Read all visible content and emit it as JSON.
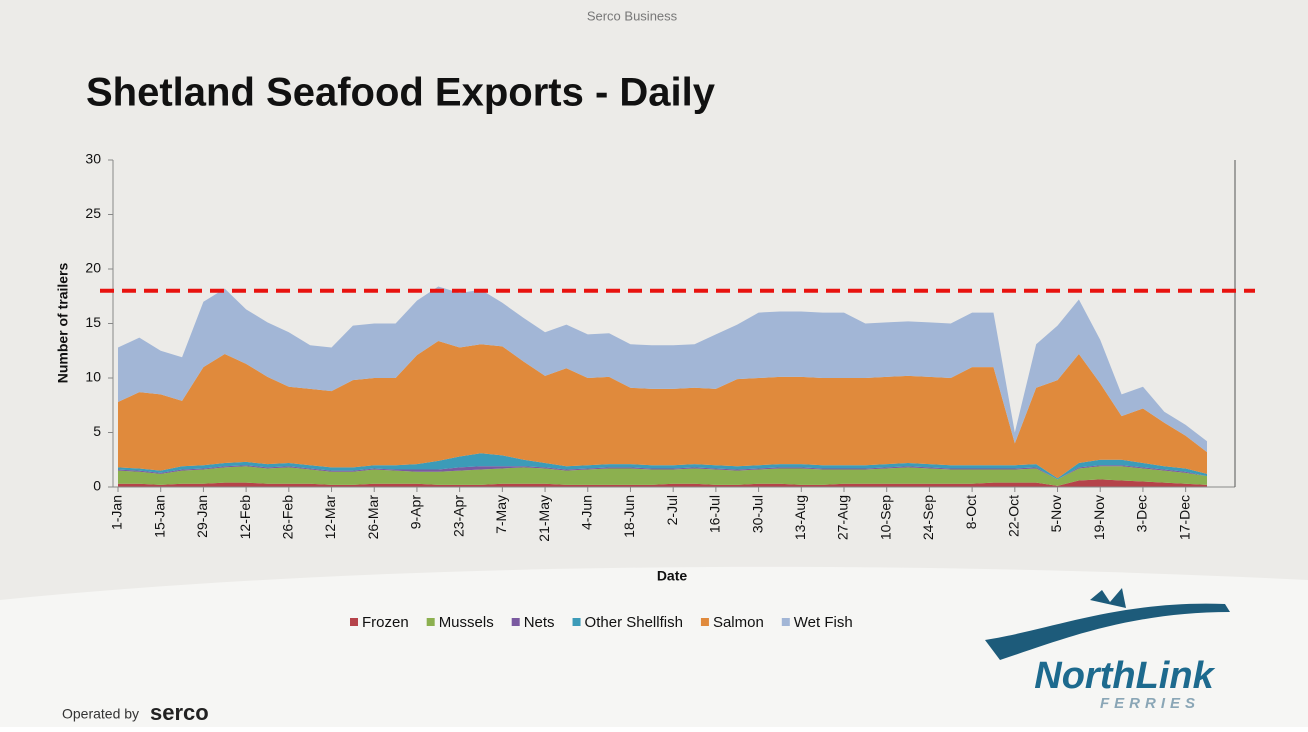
{
  "header": "Serco Business",
  "footer": {
    "operated": "Operated by",
    "brand": "serco"
  },
  "logo": {
    "name": "NorthLink",
    "sub": "FERRIES"
  },
  "chart_data": {
    "type": "stacked-area",
    "title": "Shetland Seafood Exports - Daily",
    "x_label": "Date",
    "y_label": "Number of trailers",
    "categories": [
      "1-Jan",
      null,
      "15-Jan",
      null,
      "29-Jan",
      null,
      "12-Feb",
      null,
      "26-Feb",
      null,
      "12-Mar",
      null,
      "26-Mar",
      null,
      "9-Apr",
      null,
      "23-Apr",
      null,
      "7-May",
      null,
      "21-May",
      null,
      "4-Jun",
      null,
      "18-Jun",
      null,
      "2-Jul",
      null,
      "16-Jul",
      null,
      "30-Jul",
      null,
      "13-Aug",
      null,
      "27-Aug",
      null,
      "10-Sep",
      null,
      "24-Sep",
      null,
      "8-Oct",
      null,
      "22-Oct",
      null,
      "5-Nov",
      null,
      "19-Nov",
      null,
      "3-Dec",
      null,
      "17-Dec",
      null
    ],
    "series": [
      {
        "name": "Frozen",
        "color": "#b5434a",
        "values": [
          0.3,
          0.3,
          0.2,
          0.3,
          0.3,
          0.4,
          0.4,
          0.3,
          0.3,
          0.3,
          0.2,
          0.2,
          0.3,
          0.3,
          0.3,
          0.2,
          0.2,
          0.2,
          0.3,
          0.3,
          0.3,
          0.2,
          0.2,
          0.2,
          0.2,
          0.2,
          0.3,
          0.3,
          0.2,
          0.2,
          0.3,
          0.3,
          0.2,
          0.2,
          0.3,
          0.3,
          0.3,
          0.3,
          0.3,
          0.3,
          0.3,
          0.4,
          0.4,
          0.4,
          0.1,
          0.6,
          0.7,
          0.6,
          0.5,
          0.4,
          0.3,
          0.2
        ]
      },
      {
        "name": "Mussels",
        "color": "#8cb04f",
        "values": [
          1.2,
          1.1,
          1.0,
          1.2,
          1.3,
          1.4,
          1.5,
          1.4,
          1.5,
          1.3,
          1.2,
          1.2,
          1.3,
          1.2,
          1.1,
          1.2,
          1.3,
          1.4,
          1.4,
          1.5,
          1.4,
          1.3,
          1.4,
          1.5,
          1.5,
          1.4,
          1.3,
          1.4,
          1.4,
          1.3,
          1.3,
          1.4,
          1.5,
          1.4,
          1.3,
          1.3,
          1.4,
          1.5,
          1.4,
          1.3,
          1.3,
          1.2,
          1.2,
          1.3,
          0.6,
          1.1,
          1.2,
          1.3,
          1.2,
          1.1,
          1.0,
          0.8
        ]
      },
      {
        "name": "Nets",
        "color": "#7a5aa0",
        "values": [
          0.1,
          0.1,
          0.1,
          0.1,
          0.1,
          0.1,
          0.1,
          0.1,
          0.1,
          0.1,
          0.1,
          0.1,
          0.1,
          0.1,
          0.2,
          0.2,
          0.3,
          0.3,
          0.2,
          0.1,
          0.1,
          0.1,
          0.1,
          0.1,
          0.1,
          0.1,
          0.1,
          0.1,
          0.1,
          0.1,
          0.1,
          0.1,
          0.1,
          0.1,
          0.1,
          0.1,
          0.1,
          0.1,
          0.1,
          0.1,
          0.1,
          0.1,
          0.1,
          0.1,
          0.0,
          0.1,
          0.1,
          0.1,
          0.1,
          0.1,
          0.1,
          0.0
        ]
      },
      {
        "name": "Other Shellfish",
        "color": "#3c9bb8",
        "values": [
          0.2,
          0.2,
          0.2,
          0.3,
          0.3,
          0.3,
          0.3,
          0.3,
          0.3,
          0.3,
          0.3,
          0.3,
          0.3,
          0.4,
          0.5,
          0.8,
          1.0,
          1.2,
          1.0,
          0.6,
          0.4,
          0.3,
          0.3,
          0.3,
          0.3,
          0.3,
          0.3,
          0.3,
          0.3,
          0.3,
          0.3,
          0.3,
          0.3,
          0.3,
          0.3,
          0.3,
          0.3,
          0.3,
          0.3,
          0.3,
          0.3,
          0.3,
          0.3,
          0.3,
          0.1,
          0.4,
          0.5,
          0.5,
          0.4,
          0.3,
          0.3,
          0.2
        ]
      },
      {
        "name": "Salmon",
        "color": "#e08a3c",
        "values": [
          6,
          7,
          7,
          6,
          9,
          10,
          9,
          8,
          7,
          7,
          7,
          8,
          8,
          8,
          10,
          11,
          10,
          10,
          10,
          9,
          8,
          9,
          8,
          8,
          7,
          7,
          7,
          7,
          7,
          8,
          8,
          8,
          8,
          8,
          8,
          8,
          8,
          8,
          8,
          8,
          9,
          9,
          2,
          7,
          9,
          10,
          7,
          4,
          5,
          4,
          3,
          2
        ]
      },
      {
        "name": "Wet Fish",
        "color": "#a2b6d6",
        "values": [
          5,
          5,
          4,
          4,
          6,
          6,
          5,
          5,
          5,
          4,
          4,
          5,
          5,
          5,
          5,
          5,
          5,
          5,
          4,
          4,
          4,
          4,
          4,
          4,
          4,
          4,
          4,
          4,
          5,
          5,
          6,
          6,
          6,
          6,
          6,
          5,
          5,
          5,
          5,
          5,
          5,
          5,
          1,
          4,
          5,
          5,
          4,
          2,
          2,
          1,
          1,
          1
        ]
      }
    ],
    "reference_line": {
      "value": 18,
      "color": "#e8130f"
    },
    "ylim": [
      0,
      30
    ],
    "yticks": [
      0,
      5,
      10,
      15,
      20,
      25,
      30
    ],
    "legend": "bottom"
  }
}
